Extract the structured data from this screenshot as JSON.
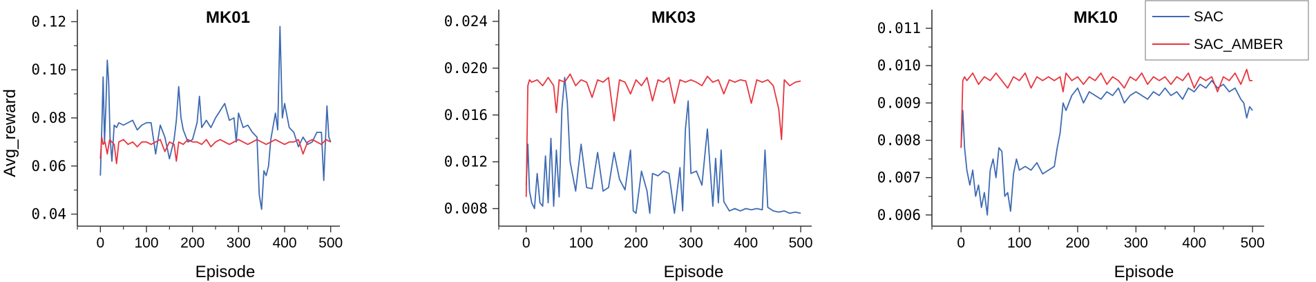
{
  "colors": {
    "SAC": "#3d6ab3",
    "SAC_AMBER": "#e8343c",
    "axis": "#333333"
  },
  "legend": {
    "placement": "top-right",
    "entries": [
      "SAC",
      "SAC_AMBER"
    ]
  },
  "chart_data": [
    {
      "type": "line",
      "title": "MK01",
      "xlabel": "Episode",
      "ylabel": "Avg_reward",
      "xlim": [
        -50,
        520
      ],
      "ylim": [
        0.035,
        0.125
      ],
      "xticks": [
        0,
        100,
        200,
        300,
        400,
        500
      ],
      "yticks": [
        0.04,
        0.06,
        0.08,
        0.1,
        0.12
      ],
      "ytick_labels": [
        "0.04",
        "0.06",
        "0.08",
        "0.10",
        "0.12"
      ],
      "grid": false,
      "series": [
        {
          "name": "SAC",
          "x": [
            0,
            3,
            6,
            9,
            12,
            15,
            18,
            21,
            25,
            30,
            35,
            40,
            50,
            60,
            70,
            80,
            90,
            100,
            110,
            120,
            130,
            140,
            150,
            160,
            165,
            170,
            175,
            180,
            190,
            200,
            210,
            215,
            220,
            230,
            240,
            250,
            260,
            270,
            280,
            290,
            295,
            300,
            310,
            320,
            330,
            340,
            345,
            350,
            355,
            360,
            365,
            370,
            380,
            385,
            390,
            395,
            400,
            410,
            420,
            430,
            440,
            450,
            460,
            470,
            480,
            485,
            488,
            492,
            496,
            500
          ],
          "y": [
            0.056,
            0.075,
            0.097,
            0.07,
            0.085,
            0.104,
            0.095,
            0.072,
            0.062,
            0.077,
            0.076,
            0.078,
            0.077,
            0.078,
            0.079,
            0.075,
            0.077,
            0.078,
            0.078,
            0.065,
            0.077,
            0.072,
            0.063,
            0.071,
            0.079,
            0.093,
            0.08,
            0.075,
            0.07,
            0.071,
            0.078,
            0.089,
            0.076,
            0.079,
            0.076,
            0.08,
            0.083,
            0.086,
            0.079,
            0.08,
            0.07,
            0.082,
            0.076,
            0.077,
            0.074,
            0.072,
            0.048,
            0.042,
            0.058,
            0.056,
            0.06,
            0.071,
            0.082,
            0.075,
            0.118,
            0.08,
            0.086,
            0.076,
            0.074,
            0.068,
            0.072,
            0.069,
            0.07,
            0.074,
            0.074,
            0.054,
            0.068,
            0.085,
            0.072,
            0.07
          ]
        },
        {
          "name": "SAC_AMBER",
          "x": [
            0,
            3,
            6,
            10,
            15,
            20,
            30,
            35,
            40,
            50,
            60,
            70,
            80,
            90,
            100,
            110,
            120,
            130,
            140,
            150,
            160,
            165,
            170,
            180,
            190,
            200,
            210,
            220,
            230,
            240,
            250,
            260,
            270,
            280,
            290,
            300,
            310,
            320,
            330,
            340,
            350,
            360,
            370,
            380,
            390,
            400,
            410,
            420,
            430,
            440,
            450,
            460,
            470,
            480,
            490,
            500
          ],
          "y": [
            0.063,
            0.072,
            0.069,
            0.07,
            0.065,
            0.071,
            0.069,
            0.061,
            0.07,
            0.071,
            0.069,
            0.07,
            0.068,
            0.07,
            0.07,
            0.069,
            0.07,
            0.071,
            0.066,
            0.07,
            0.069,
            0.062,
            0.07,
            0.069,
            0.071,
            0.07,
            0.07,
            0.069,
            0.071,
            0.068,
            0.07,
            0.071,
            0.07,
            0.069,
            0.07,
            0.071,
            0.07,
            0.069,
            0.07,
            0.071,
            0.07,
            0.069,
            0.07,
            0.071,
            0.07,
            0.069,
            0.07,
            0.07,
            0.071,
            0.065,
            0.07,
            0.071,
            0.07,
            0.069,
            0.071,
            0.07
          ]
        }
      ]
    },
    {
      "type": "line",
      "title": "MK03",
      "xlabel": "Episode",
      "ylabel": "",
      "xlim": [
        -50,
        520
      ],
      "ylim": [
        0.0065,
        0.025
      ],
      "xticks": [
        0,
        100,
        200,
        300,
        400,
        500
      ],
      "yticks": [
        0.008,
        0.012,
        0.016,
        0.02,
        0.024
      ],
      "ytick_labels": [
        "0.008",
        "0.012",
        "0.016",
        "0.020",
        "0.024"
      ],
      "grid": false,
      "series": [
        {
          "name": "SAC",
          "x": [
            0,
            3,
            6,
            10,
            15,
            20,
            25,
            30,
            35,
            40,
            45,
            50,
            55,
            60,
            65,
            70,
            75,
            80,
            90,
            100,
            110,
            120,
            130,
            140,
            150,
            160,
            170,
            180,
            190,
            195,
            200,
            210,
            220,
            225,
            230,
            240,
            250,
            260,
            270,
            280,
            285,
            290,
            295,
            300,
            310,
            320,
            330,
            340,
            345,
            350,
            355,
            360,
            370,
            380,
            390,
            400,
            410,
            420,
            430,
            435,
            440,
            450,
            460,
            470,
            480,
            490,
            500
          ],
          "y": [
            0.01,
            0.0135,
            0.0095,
            0.0085,
            0.008,
            0.011,
            0.0085,
            0.0082,
            0.0125,
            0.0085,
            0.014,
            0.0082,
            0.013,
            0.009,
            0.0165,
            0.0192,
            0.017,
            0.012,
            0.0095,
            0.0135,
            0.0098,
            0.0097,
            0.0128,
            0.0095,
            0.0098,
            0.0128,
            0.0105,
            0.0096,
            0.013,
            0.0078,
            0.0076,
            0.0112,
            0.0095,
            0.0076,
            0.011,
            0.0108,
            0.0112,
            0.011,
            0.0076,
            0.0115,
            0.0078,
            0.0148,
            0.0172,
            0.011,
            0.0112,
            0.01,
            0.0148,
            0.0082,
            0.0123,
            0.0085,
            0.013,
            0.0086,
            0.0078,
            0.008,
            0.0078,
            0.008,
            0.0079,
            0.008,
            0.0079,
            0.013,
            0.0081,
            0.0078,
            0.0077,
            0.0078,
            0.0076,
            0.0077,
            0.0076
          ]
        },
        {
          "name": "SAC_AMBER",
          "x": [
            0,
            3,
            6,
            10,
            20,
            30,
            40,
            50,
            55,
            60,
            70,
            80,
            90,
            100,
            110,
            120,
            130,
            140,
            150,
            160,
            170,
            180,
            190,
            200,
            210,
            220,
            230,
            240,
            250,
            260,
            270,
            280,
            290,
            300,
            310,
            320,
            330,
            340,
            350,
            360,
            370,
            380,
            390,
            400,
            410,
            420,
            430,
            440,
            450,
            460,
            465,
            470,
            480,
            490,
            500
          ],
          "y": [
            0.009,
            0.0185,
            0.019,
            0.0188,
            0.019,
            0.0185,
            0.0192,
            0.0185,
            0.0162,
            0.019,
            0.0188,
            0.0195,
            0.0185,
            0.019,
            0.0188,
            0.0175,
            0.019,
            0.0188,
            0.0192,
            0.0155,
            0.019,
            0.0188,
            0.0178,
            0.019,
            0.0185,
            0.0192,
            0.0172,
            0.019,
            0.0188,
            0.0192,
            0.017,
            0.019,
            0.0188,
            0.019,
            0.0188,
            0.0185,
            0.0193,
            0.0188,
            0.019,
            0.0178,
            0.019,
            0.0188,
            0.019,
            0.0189,
            0.017,
            0.019,
            0.0188,
            0.019,
            0.0185,
            0.0165,
            0.0139,
            0.019,
            0.0185,
            0.0188,
            0.0189
          ]
        }
      ]
    },
    {
      "type": "line",
      "title": "MK10",
      "xlabel": "Episode",
      "ylabel": "",
      "xlim": [
        -50,
        520
      ],
      "ylim": [
        0.0057,
        0.0115
      ],
      "xticks": [
        0,
        100,
        200,
        300,
        400,
        500
      ],
      "yticks": [
        0.006,
        0.007,
        0.008,
        0.009,
        0.01,
        0.011
      ],
      "ytick_labels": [
        "0.006",
        "0.007",
        "0.008",
        "0.009",
        "0.010",
        "0.011"
      ],
      "grid": false,
      "series": [
        {
          "name": "SAC",
          "x": [
            0,
            3,
            6,
            10,
            15,
            20,
            25,
            30,
            35,
            40,
            45,
            50,
            55,
            60,
            65,
            70,
            75,
            80,
            85,
            90,
            95,
            100,
            110,
            120,
            130,
            140,
            150,
            160,
            165,
            170,
            175,
            180,
            190,
            200,
            210,
            220,
            230,
            240,
            250,
            260,
            270,
            280,
            290,
            300,
            310,
            320,
            330,
            340,
            350,
            360,
            370,
            380,
            390,
            400,
            410,
            420,
            430,
            440,
            450,
            460,
            470,
            480,
            485,
            490,
            495,
            500
          ],
          "y": [
            0.0078,
            0.0088,
            0.0078,
            0.0072,
            0.0068,
            0.0072,
            0.0065,
            0.0068,
            0.0062,
            0.0066,
            0.006,
            0.0072,
            0.0075,
            0.007,
            0.0078,
            0.0077,
            0.0065,
            0.0066,
            0.0061,
            0.0071,
            0.0075,
            0.0072,
            0.0073,
            0.0072,
            0.0074,
            0.0071,
            0.0072,
            0.0073,
            0.0078,
            0.0082,
            0.009,
            0.0088,
            0.0092,
            0.0094,
            0.009,
            0.0093,
            0.0092,
            0.0091,
            0.0093,
            0.0092,
            0.0094,
            0.009,
            0.0092,
            0.0093,
            0.0092,
            0.0091,
            0.0093,
            0.0092,
            0.0094,
            0.0092,
            0.0093,
            0.0091,
            0.0094,
            0.0093,
            0.0095,
            0.0094,
            0.0096,
            0.0094,
            0.0095,
            0.0093,
            0.0094,
            0.0091,
            0.009,
            0.0086,
            0.0089,
            0.0088
          ]
        },
        {
          "name": "SAC_AMBER",
          "x": [
            0,
            3,
            6,
            10,
            20,
            30,
            40,
            50,
            60,
            70,
            80,
            90,
            100,
            110,
            120,
            130,
            140,
            150,
            160,
            170,
            175,
            180,
            190,
            200,
            210,
            220,
            230,
            240,
            250,
            260,
            270,
            280,
            290,
            300,
            310,
            320,
            330,
            340,
            350,
            360,
            370,
            380,
            390,
            400,
            410,
            420,
            430,
            440,
            450,
            460,
            470,
            480,
            490,
            495,
            500
          ],
          "y": [
            0.0078,
            0.0096,
            0.0097,
            0.0096,
            0.0098,
            0.0095,
            0.0097,
            0.0096,
            0.0098,
            0.0096,
            0.0094,
            0.0097,
            0.0096,
            0.0098,
            0.0094,
            0.0097,
            0.0096,
            0.0097,
            0.0096,
            0.0097,
            0.0093,
            0.0098,
            0.0096,
            0.0097,
            0.0095,
            0.0097,
            0.0096,
            0.0098,
            0.0095,
            0.0097,
            0.0096,
            0.0094,
            0.0097,
            0.0096,
            0.0098,
            0.0095,
            0.0097,
            0.0096,
            0.0097,
            0.0095,
            0.0097,
            0.0096,
            0.0098,
            0.0094,
            0.0097,
            0.0096,
            0.0097,
            0.0093,
            0.0097,
            0.0096,
            0.0098,
            0.0095,
            0.0099,
            0.0096,
            0.0096
          ]
        }
      ]
    }
  ]
}
